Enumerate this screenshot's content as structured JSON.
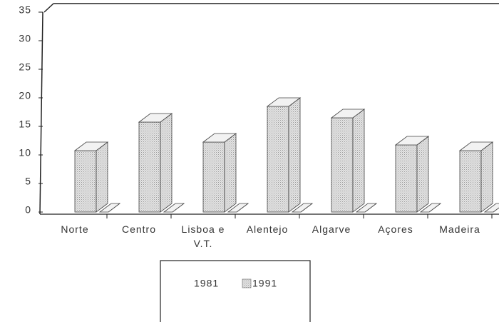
{
  "chart_data": {
    "type": "bar3d",
    "categories": [
      "Norte",
      "Centro",
      "Lisboa e V.T.",
      "Alentejo",
      "Algarve",
      "Açores",
      "Madeira"
    ],
    "series": [
      {
        "name": "1981",
        "color": "#ffffff",
        "values": [
          0,
          0,
          0,
          0,
          0,
          0,
          0
        ]
      },
      {
        "name": "1991",
        "color": "#d4d4d4",
        "values": [
          10.75,
          15.75,
          12.25,
          18.5,
          16.5,
          11.75,
          10.75
        ]
      }
    ],
    "ylim": [
      0,
      35
    ],
    "yticks": [
      0,
      5,
      10,
      15,
      20,
      25,
      30,
      35
    ],
    "legend": "bottom"
  }
}
